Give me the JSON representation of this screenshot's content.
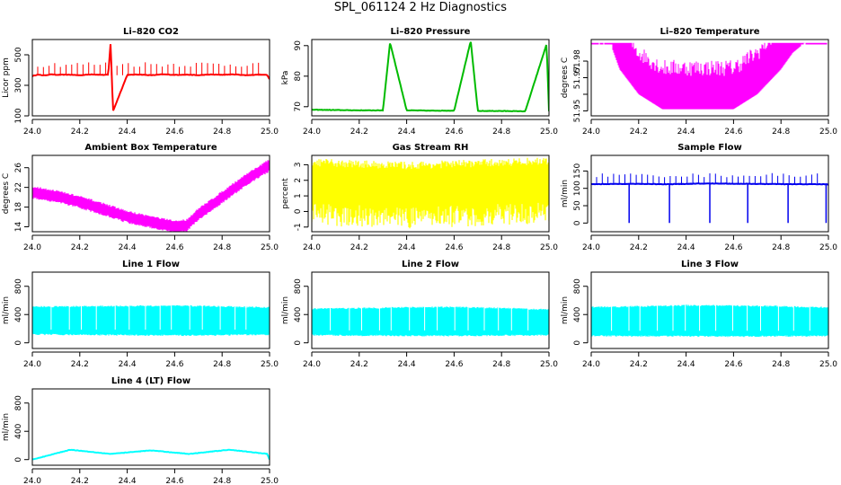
{
  "page": {
    "title": "SPL_061124  2 Hz Diagnostics"
  },
  "chart_data": [
    {
      "type": "line",
      "title": "Li–820 CO2",
      "xlabel": "",
      "ylabel": "Licor ppm",
      "xlim": [
        24.0,
        25.0
      ],
      "ylim": [
        100,
        600
      ],
      "xticks": [
        "24.0",
        "24.2",
        "24.4",
        "24.6",
        "24.8",
        "25.0"
      ],
      "yticks": [
        100,
        300,
        500
      ],
      "color": "#ff0000",
      "series": [
        {
          "x": [
            24.0,
            24.02,
            24.05,
            24.08,
            24.1,
            24.15,
            24.2,
            24.25,
            24.3,
            24.32,
            24.33,
            24.34,
            24.4,
            24.45,
            24.5,
            24.55,
            24.6,
            24.65,
            24.7,
            24.75,
            24.8,
            24.85,
            24.9,
            24.95,
            24.99,
            25.0
          ],
          "y": [
            360,
            370,
            365,
            372,
            368,
            370,
            366,
            372,
            368,
            370,
            580,
            130,
            368,
            371,
            366,
            372,
            368,
            370,
            366,
            371,
            369,
            372,
            366,
            370,
            368,
            340
          ]
        }
      ]
    },
    {
      "type": "line",
      "title": "Li–820 Pressure",
      "xlabel": "",
      "ylabel": "kPa",
      "xlim": [
        24.0,
        25.0
      ],
      "ylim": [
        67,
        92
      ],
      "xticks": [
        "24.0",
        "24.2",
        "24.4",
        "24.6",
        "24.8",
        "25.0"
      ],
      "yticks": [
        70,
        80,
        90
      ],
      "color": "#00bb00",
      "series": [
        {
          "x": [
            24.0,
            24.1,
            24.2,
            24.3,
            24.33,
            24.4,
            24.5,
            24.6,
            24.67,
            24.7,
            24.8,
            24.9,
            24.99,
            25.0
          ],
          "y": [
            69.0,
            68.9,
            68.8,
            68.8,
            91.0,
            68.8,
            68.7,
            68.7,
            91.5,
            68.6,
            68.6,
            68.5,
            90.5,
            68.5
          ]
        }
      ]
    },
    {
      "type": "line",
      "title": "Li–820 Temperature",
      "xlabel": "",
      "ylabel": "degrees C",
      "xlim": [
        24.0,
        25.0
      ],
      "ylim": [
        51.947,
        51.993
      ],
      "xticks": [
        "24.0",
        "24.2",
        "24.4",
        "24.6",
        "24.8",
        "25.0"
      ],
      "yticks": [
        51.95,
        51.96,
        51.97,
        51.98
      ],
      "ytick_labels": [
        "51.95",
        "",
        "51.97",
        "51.98"
      ],
      "color": "#ff00ff",
      "series": [
        {
          "x": [
            24.0,
            24.08,
            24.12,
            24.2,
            24.3,
            24.4,
            24.5,
            24.6,
            24.7,
            24.8,
            24.85,
            24.9,
            25.0
          ],
          "y": [
            51.991,
            51.991,
            51.975,
            51.96,
            51.951,
            51.951,
            51.951,
            51.951,
            51.96,
            51.975,
            51.985,
            51.991,
            51.991
          ]
        }
      ]
    },
    {
      "type": "line",
      "title": "Ambient Box Temperature",
      "xlabel": "",
      "ylabel": "degrees C",
      "xlim": [
        24.0,
        25.0
      ],
      "ylim": [
        13,
        28.5
      ],
      "xticks": [
        "24.0",
        "24.2",
        "24.4",
        "24.6",
        "24.8",
        "25.0"
      ],
      "yticks": [
        14,
        18,
        22,
        26
      ],
      "color": "#ff00ff",
      "series": [
        {
          "x": [
            24.0,
            24.1,
            24.2,
            24.3,
            24.4,
            24.5,
            24.6,
            24.65,
            24.7,
            24.8,
            24.9,
            25.0
          ],
          "y": [
            21.0,
            20.2,
            19.0,
            17.6,
            16.0,
            15.0,
            14.0,
            14.3,
            16.5,
            20.0,
            23.5,
            26.5
          ]
        }
      ]
    },
    {
      "type": "line",
      "title": "Gas Stream RH",
      "xlabel": "",
      "ylabel": "percent",
      "xlim": [
        24.0,
        25.0
      ],
      "ylim": [
        -1.3,
        3.6
      ],
      "xticks": [
        "24.0",
        "24.2",
        "24.4",
        "24.6",
        "24.8",
        "25.0"
      ],
      "yticks": [
        -1,
        0,
        1,
        2,
        3
      ],
      "color": "#ffff00",
      "series": [
        {
          "x": [
            24.0,
            24.2,
            24.4,
            24.6,
            24.8,
            25.0
          ],
          "y": [
            1.7,
            1.6,
            1.5,
            1.6,
            1.7,
            1.8
          ]
        }
      ]
    },
    {
      "type": "line",
      "title": "Sample Flow",
      "xlabel": "",
      "ylabel": "ml/min",
      "xlim": [
        24.0,
        25.0
      ],
      "ylim": [
        -25,
        195
      ],
      "xticks": [
        "24.0",
        "24.2",
        "24.4",
        "24.6",
        "24.8",
        "25.0"
      ],
      "yticks": [
        0,
        50,
        100,
        150
      ],
      "color": "#0000ee",
      "series": [
        {
          "x": [
            24.0,
            24.16,
            24.33,
            24.5,
            24.66,
            24.83,
            24.99,
            25.0
          ],
          "y": [
            112,
            113,
            112,
            114,
            113,
            112,
            112,
            110
          ]
        }
      ]
    },
    {
      "type": "area",
      "title": "Line 1 Flow",
      "xlabel": "",
      "ylabel": "ml/min",
      "xlim": [
        24.0,
        25.0
      ],
      "ylim": [
        -80,
        1000
      ],
      "xticks": [
        "24.0",
        "24.2",
        "24.4",
        "24.6",
        "24.8",
        "25.0"
      ],
      "yticks": [
        0,
        400,
        800
      ],
      "color": "#00ffff",
      "series": [
        {
          "x": [
            24.0,
            24.2,
            24.4,
            24.6,
            24.8,
            25.0
          ],
          "y_high": [
            510,
            515,
            520,
            525,
            515,
            500
          ],
          "y_low": [
            120,
            115,
            110,
            105,
            110,
            115
          ]
        }
      ]
    },
    {
      "type": "area",
      "title": "Line 2 Flow",
      "xlabel": "",
      "ylabel": "ml/min",
      "xlim": [
        24.0,
        25.0
      ],
      "ylim": [
        -80,
        1000
      ],
      "xticks": [
        "24.0",
        "24.2",
        "24.4",
        "24.6",
        "24.8",
        "25.0"
      ],
      "yticks": [
        0,
        400,
        800
      ],
      "color": "#00ffff",
      "series": [
        {
          "x": [
            24.0,
            24.2,
            24.4,
            24.6,
            24.8,
            25.0
          ],
          "y_high": [
            480,
            490,
            500,
            505,
            490,
            470
          ],
          "y_low": [
            110,
            105,
            100,
            100,
            105,
            110
          ]
        }
      ]
    },
    {
      "type": "area",
      "title": "Line 3 Flow",
      "xlabel": "",
      "ylabel": "ml/min",
      "xlim": [
        24.0,
        25.0
      ],
      "ylim": [
        -80,
        1000
      ],
      "xticks": [
        "24.0",
        "24.2",
        "24.4",
        "24.6",
        "24.8",
        "25.0"
      ],
      "yticks": [
        0,
        400,
        800
      ],
      "color": "#00ffff",
      "series": [
        {
          "x": [
            24.0,
            24.2,
            24.4,
            24.6,
            24.8,
            25.0
          ],
          "y_high": [
            505,
            515,
            530,
            525,
            515,
            500
          ],
          "y_low": [
            100,
            95,
            95,
            90,
            95,
            100
          ]
        }
      ]
    },
    {
      "type": "line",
      "title": "Line 4 (LT) Flow",
      "xlabel": "",
      "ylabel": "ml/min",
      "xlim": [
        24.0,
        25.0
      ],
      "ylim": [
        -80,
        1000
      ],
      "xticks": [
        "24.0",
        "24.2",
        "24.4",
        "24.6",
        "24.8",
        "25.0"
      ],
      "yticks": [
        0,
        400,
        800
      ],
      "color": "#00ffff",
      "series": [
        {
          "x": [
            24.0,
            24.16,
            24.33,
            24.5,
            24.66,
            24.83,
            24.99,
            25.0
          ],
          "y": [
            0,
            140,
            80,
            130,
            80,
            140,
            80,
            0
          ]
        }
      ]
    }
  ]
}
